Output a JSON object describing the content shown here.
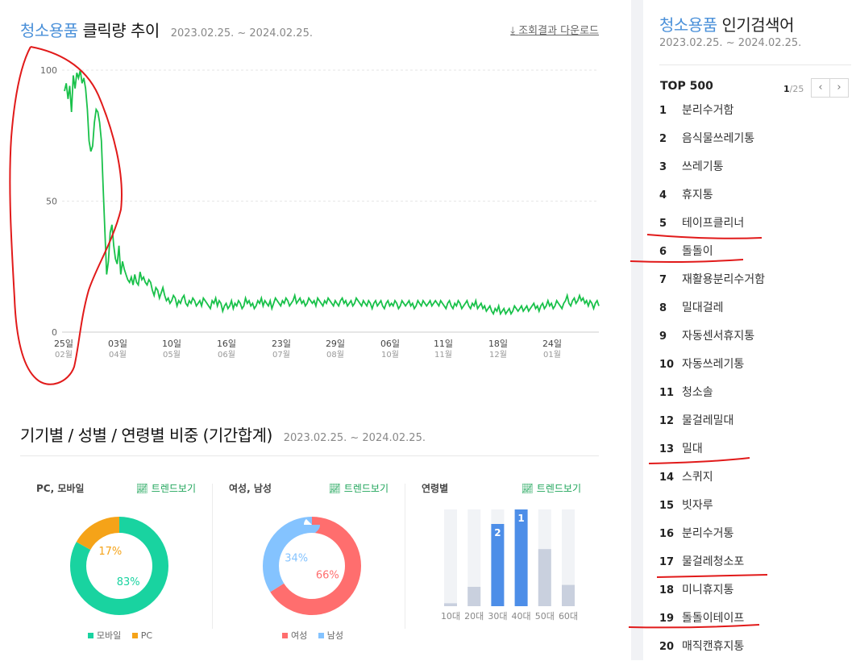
{
  "trend": {
    "keyword": "청소용품",
    "title_suffix": "클릭량 추이",
    "date_range": "2023.02.25. ~ 2024.02.25.",
    "download_label": "조회결과 다운로드"
  },
  "chart_data": {
    "type": "line",
    "title": "청소용품 클릭량 추이",
    "xlabel": "",
    "ylabel": "",
    "ylim": [
      0,
      100
    ],
    "y_ticks": [
      "0",
      "50",
      "100"
    ],
    "x_ticks": [
      {
        "day": "25일",
        "month": "02월"
      },
      {
        "day": "03일",
        "month": "04월"
      },
      {
        "day": "10일",
        "month": "05월"
      },
      {
        "day": "16일",
        "month": "06월"
      },
      {
        "day": "23일",
        "month": "07월"
      },
      {
        "day": "29일",
        "month": "08월"
      },
      {
        "day": "06일",
        "month": "10월"
      },
      {
        "day": "11일",
        "month": "11월"
      },
      {
        "day": "18일",
        "month": "12월"
      },
      {
        "day": "24일",
        "month": "01월"
      }
    ],
    "grid": true,
    "line_color": "#19c14a",
    "series": [
      {
        "values": [
          92,
          95,
          89,
          94,
          84,
          98,
          93,
          99,
          97,
          100,
          95,
          97,
          93,
          85,
          73,
          69,
          71,
          80,
          85,
          84,
          80,
          73,
          55,
          38,
          22,
          27,
          38,
          41,
          33,
          28,
          26,
          33,
          22,
          27,
          24,
          22,
          20,
          19,
          21,
          18,
          22,
          19,
          18,
          23,
          20,
          21,
          19,
          18,
          20,
          19,
          16,
          14,
          17,
          16,
          13,
          15,
          17,
          14,
          12,
          13,
          11,
          12,
          14,
          13,
          10,
          12,
          11,
          13,
          14,
          11,
          10,
          12,
          11,
          13,
          12,
          10,
          11,
          12,
          10,
          13,
          12,
          11,
          10,
          9,
          12,
          11,
          13,
          10,
          12,
          11,
          8,
          10,
          11,
          9,
          10,
          12,
          9,
          11,
          10,
          12,
          11,
          9,
          10,
          13,
          11,
          12,
          10,
          11,
          9,
          10,
          12,
          11,
          13,
          10,
          12,
          11,
          10,
          12,
          9,
          11,
          13,
          12,
          11,
          10,
          12,
          11,
          13,
          12,
          10,
          11,
          12,
          14,
          11,
          12,
          13,
          11,
          12,
          10,
          11,
          13,
          12,
          11,
          12,
          10,
          13,
          12,
          11,
          10,
          12,
          11,
          13,
          12,
          11,
          10,
          12,
          11,
          10,
          12,
          13,
          11,
          12,
          10,
          11,
          12,
          10,
          11,
          13,
          12,
          11,
          10,
          12,
          11,
          10,
          12,
          11,
          9,
          11,
          12,
          10,
          11,
          12,
          10,
          9,
          11,
          12,
          10,
          11,
          10,
          12,
          11,
          9,
          10,
          12,
          11,
          10,
          11,
          12,
          10,
          11,
          9,
          10,
          12,
          11,
          10,
          12,
          11,
          10,
          11,
          12,
          10,
          11,
          12,
          11,
          10,
          12,
          11,
          10,
          9,
          11,
          12,
          10,
          9,
          11,
          10,
          12,
          11,
          9,
          10,
          11,
          12,
          10,
          9,
          11,
          10,
          12,
          9,
          10,
          11,
          9,
          10,
          8,
          9,
          10,
          8,
          7,
          9,
          8,
          10,
          7,
          8,
          9,
          7,
          8,
          9,
          7,
          8,
          10,
          9,
          8,
          9,
          10,
          8,
          9,
          10,
          8,
          9,
          10,
          11,
          9,
          10,
          8,
          10,
          11,
          9,
          10,
          12,
          10,
          11,
          9,
          10,
          12,
          11,
          10,
          9,
          11,
          12,
          14,
          11,
          10,
          12,
          13,
          11,
          12,
          14,
          12,
          13,
          11,
          12,
          10,
          12,
          11,
          9,
          11,
          12,
          10
        ]
      }
    ]
  },
  "breakdown": {
    "title": "기기별 / 성별 / 연령별 비중 (기간합계)",
    "date_range": "2023.02.25. ~ 2024.02.25.",
    "trend_label": "트렌드보기",
    "device": {
      "title": "PC, 모바일",
      "slices": [
        {
          "name": "모바일",
          "pct_label": "83%",
          "value": 83,
          "color": "#19d3a0"
        },
        {
          "name": "PC",
          "pct_label": "17%",
          "value": 17,
          "color": "#f5a318"
        }
      ]
    },
    "gender": {
      "title": "여성, 남성",
      "slices": [
        {
          "name": "여성",
          "pct_label": "66%",
          "value": 66,
          "color": "#ff6e6e"
        },
        {
          "name": "남성",
          "pct_label": "34%",
          "value": 34,
          "color": "#84c3ff"
        }
      ]
    },
    "age": {
      "title": "연령별",
      "bars": [
        {
          "label": "10대",
          "value": 3,
          "rank": "",
          "color": "#c9d0de"
        },
        {
          "label": "20대",
          "value": 20,
          "rank": "",
          "color": "#c9d0de"
        },
        {
          "label": "30대",
          "value": 85,
          "rank": "2",
          "color": "#4d8ee8"
        },
        {
          "label": "40대",
          "value": 100,
          "rank": "1",
          "color": "#4d8ee8"
        },
        {
          "label": "50대",
          "value": 59,
          "rank": "",
          "color": "#c9d0de"
        },
        {
          "label": "60대",
          "value": 22,
          "rank": "",
          "color": "#c9d0de"
        }
      ]
    }
  },
  "popular": {
    "keyword": "청소용품",
    "title_suffix": "인기검색어",
    "date_range": "2023.02.25. ~ 2024.02.25.",
    "top_label": "TOP 500",
    "page_current": "1",
    "page_total": "/25",
    "prev_icon": "chevron-left-icon",
    "next_icon": "chevron-right-icon",
    "items": [
      {
        "rank": "1",
        "text": "분리수거함"
      },
      {
        "rank": "2",
        "text": "음식물쓰레기통"
      },
      {
        "rank": "3",
        "text": "쓰레기통"
      },
      {
        "rank": "4",
        "text": "휴지통"
      },
      {
        "rank": "5",
        "text": "테이프클리너"
      },
      {
        "rank": "6",
        "text": "돌돌이"
      },
      {
        "rank": "7",
        "text": "재활용분리수거함"
      },
      {
        "rank": "8",
        "text": "밀대걸레"
      },
      {
        "rank": "9",
        "text": "자동센서휴지통"
      },
      {
        "rank": "10",
        "text": "자동쓰레기통"
      },
      {
        "rank": "11",
        "text": "청소솔"
      },
      {
        "rank": "12",
        "text": "물걸레밀대"
      },
      {
        "rank": "13",
        "text": "밀대"
      },
      {
        "rank": "14",
        "text": "스퀴지"
      },
      {
        "rank": "15",
        "text": "빗자루"
      },
      {
        "rank": "16",
        "text": "분리수거통"
      },
      {
        "rank": "17",
        "text": "물걸레청소포"
      },
      {
        "rank": "18",
        "text": "미니휴지통"
      },
      {
        "rank": "19",
        "text": "돌돌이테이프"
      },
      {
        "rank": "20",
        "text": "매직캔휴지통"
      }
    ]
  },
  "annotation_color": "#e11a1a"
}
